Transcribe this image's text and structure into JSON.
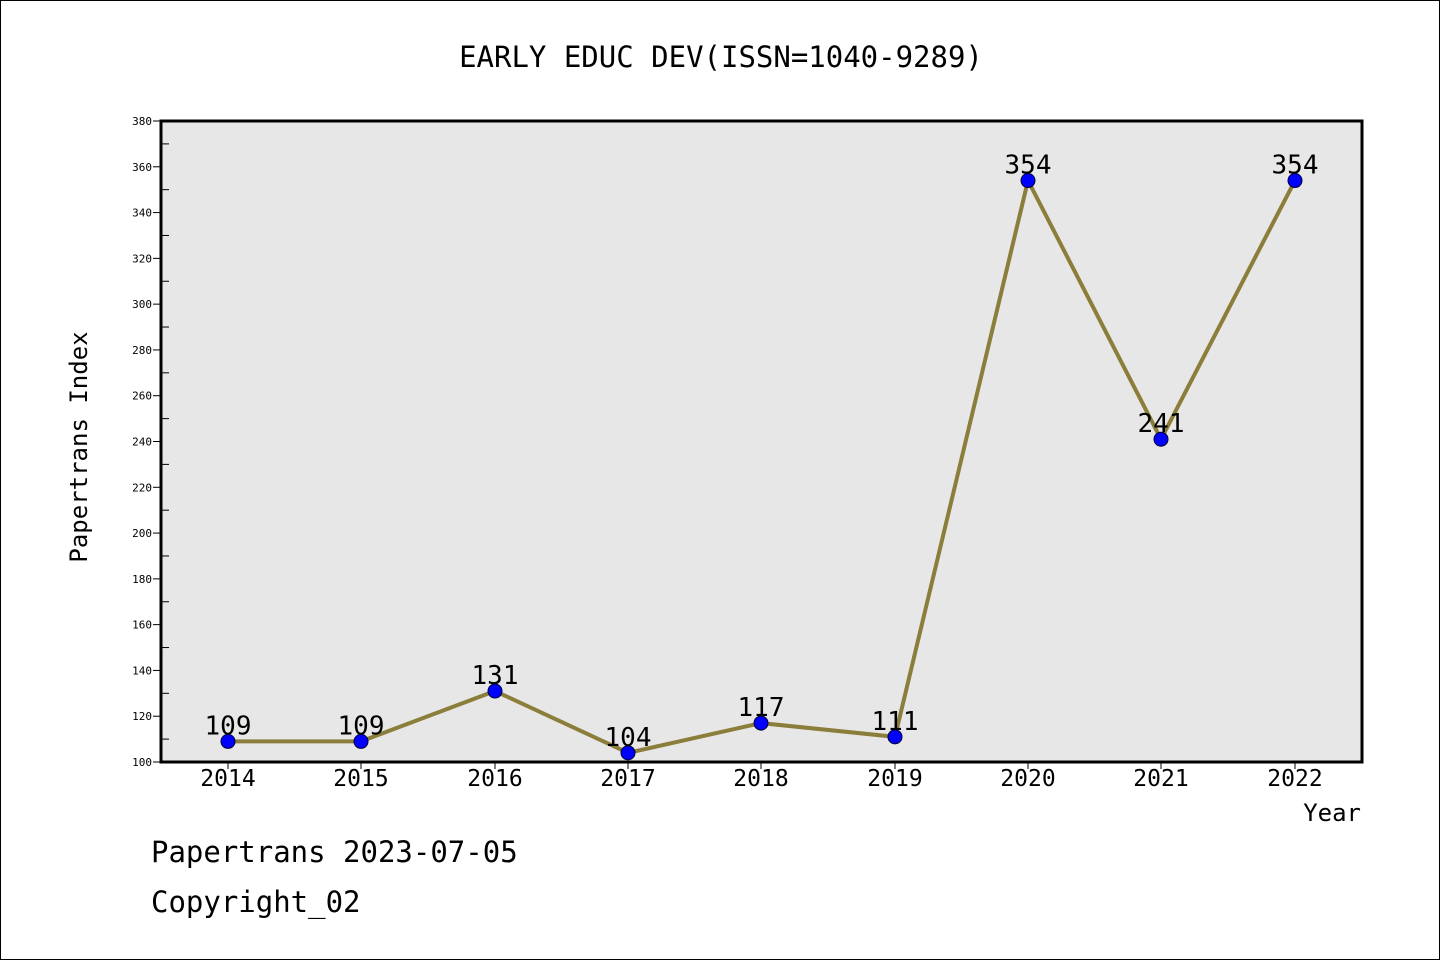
{
  "chart_data": {
    "type": "line",
    "title": "EARLY EDUC DEV(ISSN=1040-9289)",
    "xlabel": "Year",
    "ylabel": "Papertrans Index",
    "categories": [
      "2014",
      "2015",
      "2016",
      "2017",
      "2018",
      "2019",
      "2020",
      "2021",
      "2022"
    ],
    "series": [
      {
        "values": [
          109,
          109,
          131,
          104,
          117,
          111,
          354,
          241,
          354
        ]
      }
    ],
    "data_labels": [
      "109",
      "109",
      "131",
      "104",
      "117",
      "111",
      "354",
      "241",
      "354"
    ],
    "ylim": [
      100,
      380
    ],
    "yticks": [
      100,
      120,
      140,
      160,
      180,
      200,
      220,
      240,
      260,
      280,
      300,
      320,
      340,
      360,
      380
    ],
    "grid": false,
    "colors": {
      "line": "#8b7d3a",
      "marker": "#0000ff",
      "plot_background": "#e7e7e7"
    }
  },
  "footer": {
    "date_text": "Papertrans 2023-07-05",
    "copyright_text": "Copyright_02"
  }
}
